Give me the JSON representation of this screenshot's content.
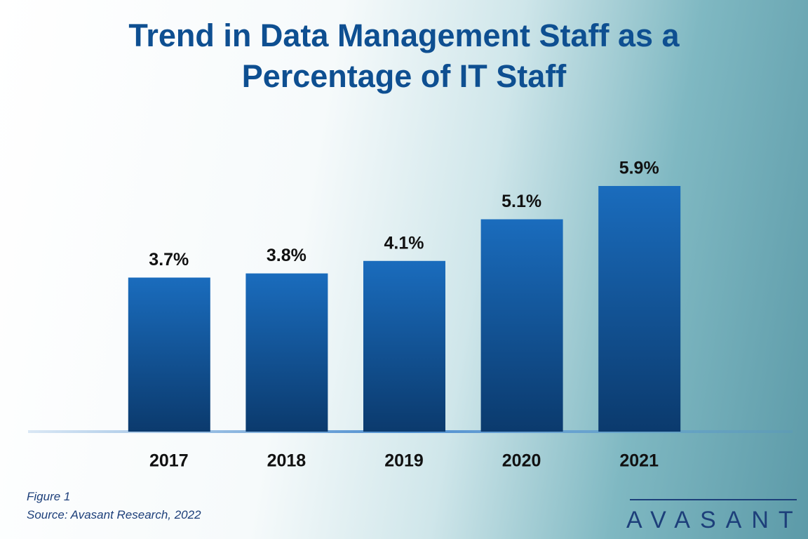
{
  "chart_data": {
    "type": "bar",
    "title": "Trend in Data Management Staff as a Percentage of IT Staff",
    "categories": [
      "2017",
      "2018",
      "2019",
      "2020",
      "2021"
    ],
    "values": [
      3.7,
      3.8,
      4.1,
      5.1,
      5.9
    ],
    "value_labels": [
      "3.7%",
      "3.8%",
      "4.1%",
      "5.1%",
      "5.9%"
    ],
    "color": "#1a6cbd"
  },
  "caption": "Figure 1",
  "source": "Source: Avasant Research, 2022",
  "brand": "AVASANT"
}
